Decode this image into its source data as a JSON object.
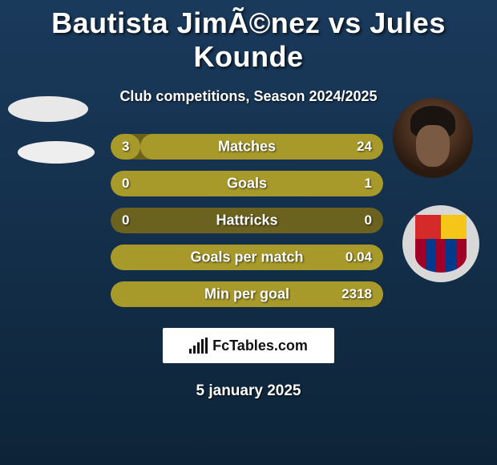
{
  "title": "Bautista JimÃ©nez vs Jules Kounde",
  "subtitle": "Club competitions, Season 2024/2025",
  "date_text": "5 january 2025",
  "brand": "FcTables.com",
  "colors": {
    "bar_active": "#a89a2a",
    "bar_inactive": "#6b621f",
    "bg_top": "#1a3a5c",
    "bg_bottom": "#0d2438"
  },
  "right_club_crest": {
    "top_left_color": "#d42a2a",
    "top_right_color": "#f5c518",
    "stripes": [
      "#a00028",
      "#003a8c",
      "#a00028",
      "#003a8c",
      "#a00028"
    ]
  },
  "stats": [
    {
      "label": "Matches",
      "left_val": "3",
      "right_val": "24",
      "left_pct": 11,
      "right_pct": 89
    },
    {
      "label": "Goals",
      "left_val": "0",
      "right_val": "1",
      "left_pct": 0,
      "right_pct": 100
    },
    {
      "label": "Hattricks",
      "left_val": "0",
      "right_val": "0",
      "left_pct": 0,
      "right_pct": 0
    },
    {
      "label": "Goals per match",
      "left_val": "",
      "right_val": "0.04",
      "left_pct": 0,
      "right_pct": 100
    },
    {
      "label": "Min per goal",
      "left_val": "",
      "right_val": "2318",
      "left_pct": 0,
      "right_pct": 100
    }
  ]
}
